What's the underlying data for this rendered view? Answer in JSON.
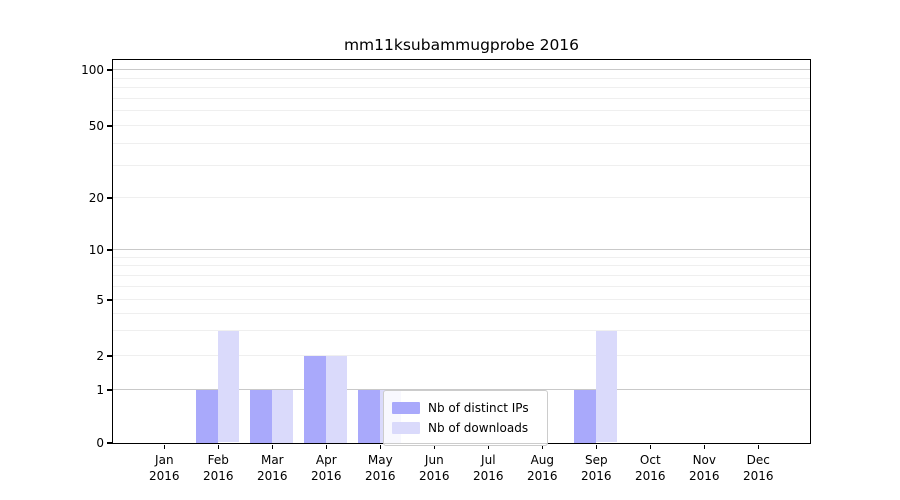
{
  "chart_data": {
    "type": "bar",
    "title": "mm11ksubammugprobe 2016",
    "categories": [
      "Jan",
      "Feb",
      "Mar",
      "Apr",
      "May",
      "Jun",
      "Jul",
      "Aug",
      "Sep",
      "Oct",
      "Nov",
      "Dec"
    ],
    "x_year_label": "2016",
    "series": [
      {
        "name": "Nb of distinct IPs",
        "color": "#a9a9fb",
        "values": [
          0,
          1,
          1,
          2,
          1,
          0,
          0,
          0,
          1,
          0,
          0,
          0
        ]
      },
      {
        "name": "Nb of downloads",
        "color": "#dadafb",
        "values": [
          0,
          3,
          1,
          2,
          1,
          0,
          0,
          0,
          3,
          0,
          0,
          0
        ]
      }
    ],
    "yscale": "symlog",
    "y_tick_values": [
      0,
      1,
      2,
      5,
      10,
      20,
      50,
      100
    ],
    "y_tick_labels": [
      "0",
      "1",
      "2",
      "5",
      "10",
      "20",
      "50",
      "100"
    ],
    "ylim": [
      0,
      110
    ],
    "xlabel": "",
    "ylabel": "",
    "grid": "both-horizontal",
    "legend_position": "lower-center",
    "colors": {
      "major_power_gridline": "#c9c9c9",
      "minor_gridline": "#efefef",
      "axis_spine": "#000000",
      "background": "#ffffff"
    }
  }
}
